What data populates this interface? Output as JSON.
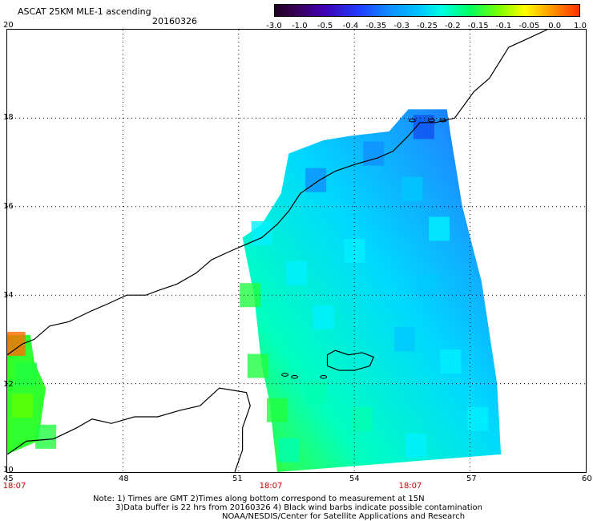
{
  "header": {
    "title": "ASCAT 25KM MLE-1 ascending",
    "date": "20160326"
  },
  "colorbar": {
    "labels": [
      "-3.0",
      "-1.0",
      "-0.5",
      "-0.4",
      "-0.35",
      "-0.3",
      "-0.25",
      "-0.2",
      "-0.15",
      "-0.1",
      "-0.05",
      "0.0",
      "1.0"
    ]
  },
  "axes": {
    "x_ticks": [
      "45",
      "48",
      "51",
      "54",
      "57",
      "60"
    ],
    "y_ticks": [
      "20",
      "18",
      "16",
      "14",
      "12",
      "10"
    ]
  },
  "times": [
    "18:07",
    "18:07",
    "18:07"
  ],
  "notes": {
    "line1": "Note: 1) Times are GMT 2)Times along bottom correspond to measurement at 15N",
    "line2": "3)Data buffer is 22 hrs from 20160326 4) Black wind barbs indicate possible contamination",
    "line3": "NOAA/NESDIS/Center for Satellite Applications and Research"
  },
  "colors": {
    "coastline": "#000000",
    "gridline": "#000000",
    "time_label": "#cc0000"
  },
  "map": {
    "lon_range": [
      45,
      60
    ],
    "lat_range": [
      10,
      20
    ],
    "coastline": [
      [
        45.0,
        12.65
      ],
      [
        45.4,
        12.9
      ],
      [
        45.7,
        13.0
      ],
      [
        46.1,
        13.3
      ],
      [
        46.6,
        13.4
      ],
      [
        47.2,
        13.65
      ],
      [
        47.6,
        13.8
      ],
      [
        48.1,
        14.0
      ],
      [
        48.6,
        14.0
      ],
      [
        48.9,
        14.1
      ],
      [
        49.4,
        14.25
      ],
      [
        49.9,
        14.5
      ],
      [
        50.3,
        14.8
      ],
      [
        50.8,
        15.0
      ],
      [
        51.2,
        15.15
      ],
      [
        51.6,
        15.3
      ],
      [
        52.0,
        15.6
      ],
      [
        52.3,
        15.9
      ],
      [
        52.6,
        16.3
      ],
      [
        53.1,
        16.6
      ],
      [
        53.5,
        16.8
      ],
      [
        54.0,
        16.95
      ],
      [
        54.6,
        17.1
      ],
      [
        55.0,
        17.25
      ],
      [
        55.4,
        17.6
      ],
      [
        55.7,
        17.9
      ],
      [
        56.1,
        17.9
      ],
      [
        56.6,
        18.0
      ],
      [
        57.1,
        18.6
      ],
      [
        57.5,
        18.9
      ],
      [
        58.0,
        19.6
      ],
      [
        58.5,
        19.8
      ],
      [
        59.0,
        20.0
      ]
    ],
    "africa_coast": [
      [
        45.0,
        10.4
      ],
      [
        45.5,
        10.7
      ],
      [
        46.2,
        10.75
      ],
      [
        46.8,
        11.0
      ],
      [
        47.2,
        11.2
      ],
      [
        47.7,
        11.1
      ],
      [
        48.3,
        11.25
      ],
      [
        48.9,
        11.25
      ],
      [
        49.5,
        11.4
      ],
      [
        50.0,
        11.5
      ],
      [
        50.5,
        11.9
      ],
      [
        51.2,
        11.8
      ],
      [
        51.3,
        11.5
      ],
      [
        51.1,
        11.0
      ],
      [
        51.1,
        10.5
      ],
      [
        50.9,
        10.0
      ]
    ],
    "socotra": [
      [
        53.3,
        12.65
      ],
      [
        53.5,
        12.75
      ],
      [
        53.85,
        12.65
      ],
      [
        54.2,
        12.7
      ],
      [
        54.5,
        12.6
      ],
      [
        54.4,
        12.4
      ],
      [
        54.0,
        12.3
      ],
      [
        53.6,
        12.3
      ],
      [
        53.3,
        12.4
      ],
      [
        53.3,
        12.65
      ]
    ],
    "islets": [
      [
        52.2,
        12.2
      ],
      [
        52.45,
        12.15
      ],
      [
        53.2,
        12.15
      ],
      [
        55.5,
        17.95
      ],
      [
        56.0,
        17.95
      ],
      [
        56.3,
        17.95
      ]
    ],
    "swath": {
      "polygon": [
        [
          51.1,
          15.3
        ],
        [
          51.6,
          15.6
        ],
        [
          52.1,
          16.3
        ],
        [
          52.3,
          17.2
        ],
        [
          53.2,
          17.5
        ],
        [
          53.9,
          17.6
        ],
        [
          54.9,
          17.7
        ],
        [
          55.4,
          18.2
        ],
        [
          56.4,
          18.2
        ],
        [
          56.5,
          17.6
        ],
        [
          56.8,
          16.0
        ],
        [
          57.3,
          14.3
        ],
        [
          57.7,
          12.0
        ],
        [
          57.8,
          10.4
        ],
        [
          52.0,
          10.0
        ],
        [
          51.8,
          11.6
        ],
        [
          51.6,
          12.4
        ],
        [
          51.4,
          14.0
        ]
      ],
      "left_strip": [
        [
          45.0,
          13.1
        ],
        [
          45.6,
          13.1
        ],
        [
          45.7,
          12.5
        ],
        [
          46.0,
          11.9
        ],
        [
          45.8,
          10.7
        ],
        [
          45.0,
          10.4
        ]
      ],
      "cells": [
        [
          46.0,
          10.8,
          -0.2
        ],
        [
          45.4,
          11.5,
          -0.15
        ],
        [
          45.5,
          12.2,
          -0.18
        ],
        [
          45.2,
          12.9,
          0.2
        ],
        [
          51.3,
          14.0,
          -0.2
        ],
        [
          51.5,
          12.4,
          -0.18
        ],
        [
          52.0,
          11.4,
          -0.2
        ],
        [
          52.3,
          10.5,
          -0.22
        ],
        [
          51.6,
          15.4,
          -0.3
        ],
        [
          53.0,
          16.6,
          -0.36
        ],
        [
          54.5,
          17.2,
          -0.38
        ],
        [
          55.8,
          17.8,
          -0.5
        ],
        [
          55.5,
          16.4,
          -0.34
        ],
        [
          56.2,
          15.5,
          -0.3
        ],
        [
          54.0,
          15.0,
          -0.3
        ],
        [
          53.2,
          13.5,
          -0.28
        ],
        [
          55.3,
          13.0,
          -0.32
        ],
        [
          56.5,
          12.5,
          -0.3
        ],
        [
          57.2,
          11.2,
          -0.28
        ],
        [
          54.2,
          11.2,
          -0.25
        ],
        [
          55.6,
          10.6,
          -0.28
        ],
        [
          53.0,
          11.8,
          -0.25
        ],
        [
          52.5,
          14.5,
          -0.27
        ],
        [
          55.9,
          14.2,
          -0.33
        ]
      ]
    }
  }
}
